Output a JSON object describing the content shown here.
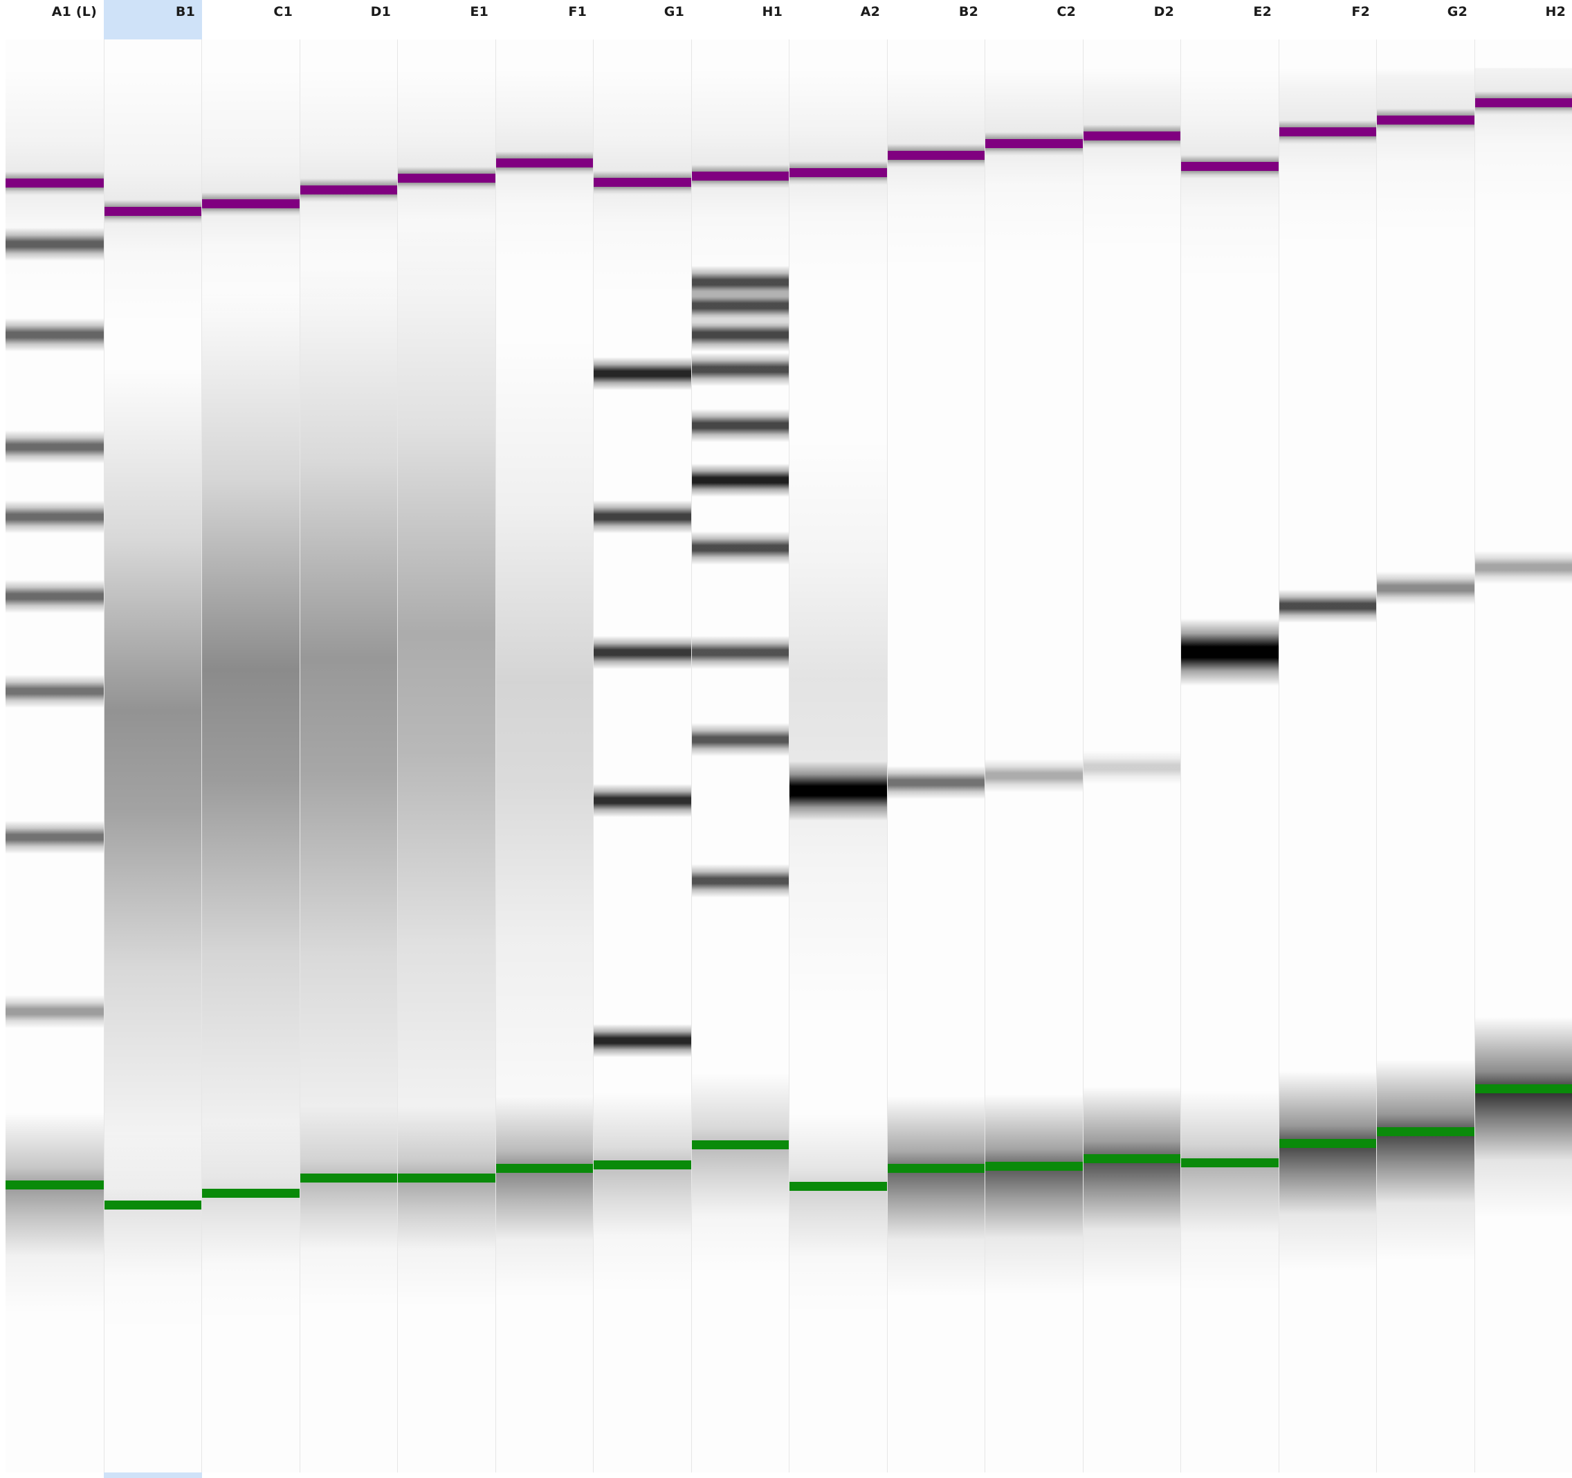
{
  "gel": {
    "lower_marker_color": "#0a8a0a",
    "upper_marker_color": "#800080",
    "band_color": "#000000",
    "selected_lane": "B1",
    "lanes": [
      {
        "label": "A1 (L)",
        "type": "ladder",
        "upper_marker": 0.1,
        "lower_marker": 0.799,
        "bands": [
          {
            "y": 0.1427,
            "i": 0.62
          },
          {
            "y": 0.2062,
            "i": 0.6
          },
          {
            "y": 0.2845,
            "i": 0.58
          },
          {
            "y": 0.3331,
            "i": 0.58
          },
          {
            "y": 0.3885,
            "i": 0.58
          },
          {
            "y": 0.4547,
            "i": 0.55
          },
          {
            "y": 0.5567,
            "i": 0.55
          },
          {
            "y": 0.6785,
            "i": 0.38
          }
        ],
        "smear": null,
        "tail": 0.45
      },
      {
        "label": "B1",
        "type": "sample",
        "upper_marker": 0.1196,
        "lower_marker": 0.8132,
        "bands": [],
        "smear": {
          "c": 0.4885,
          "w": 0.1,
          "i": 0.42
        },
        "tail": 0.12
      },
      {
        "label": "C1",
        "type": "sample",
        "upper_marker": 0.1142,
        "lower_marker": 0.8051,
        "bands": [],
        "smear": {
          "c": 0.4615,
          "w": 0.11,
          "i": 0.45
        },
        "tail": 0.15
      },
      {
        "label": "D1",
        "type": "sample",
        "upper_marker": 0.1047,
        "lower_marker": 0.7943,
        "bands": [],
        "smear": {
          "c": 0.4547,
          "w": 0.115,
          "i": 0.4
        },
        "tail": 0.3
      },
      {
        "label": "E1",
        "type": "sample",
        "upper_marker": 0.0966,
        "lower_marker": 0.7943,
        "bands": [],
        "smear": {
          "c": 0.4385,
          "w": 0.12,
          "i": 0.32
        },
        "tail": 0.38
      },
      {
        "label": "F1",
        "type": "sample",
        "upper_marker": 0.0858,
        "lower_marker": 0.7876,
        "bands": [],
        "smear": {
          "c": 0.4682,
          "w": 0.1,
          "i": 0.16
        },
        "tail": 0.55
      },
      {
        "label": "G1",
        "type": "ladder",
        "upper_marker": 0.0993,
        "lower_marker": 0.7849,
        "bands": [
          {
            "y": 0.2331,
            "i": 0.85
          },
          {
            "y": 0.3331,
            "i": 0.75
          },
          {
            "y": 0.4277,
            "i": 0.78
          },
          {
            "y": 0.5311,
            "i": 0.82
          },
          {
            "y": 0.6988,
            "i": 0.85
          }
        ],
        "smear": null,
        "tail": 0.28
      },
      {
        "label": "H1",
        "type": "ladder",
        "upper_marker": 0.0953,
        "lower_marker": 0.7713,
        "bands": [
          {
            "y": 0.1697,
            "i": 0.7
          },
          {
            "y": 0.1859,
            "i": 0.7
          },
          {
            "y": 0.2062,
            "i": 0.72
          },
          {
            "y": 0.2304,
            "i": 0.7
          },
          {
            "y": 0.2696,
            "i": 0.72
          },
          {
            "y": 0.3074,
            "i": 0.88
          },
          {
            "y": 0.3547,
            "i": 0.7
          },
          {
            "y": 0.4277,
            "i": 0.68
          },
          {
            "y": 0.4885,
            "i": 0.66
          },
          {
            "y": 0.5871,
            "i": 0.68
          }
        ],
        "smear": null,
        "tail": 0.3
      },
      {
        "label": "A2",
        "type": "sample",
        "upper_marker": 0.0925,
        "lower_marker": 0.8,
        "bands": [
          {
            "y": 0.5245,
            "i": 1.0,
            "h": 0.016
          }
        ],
        "smear": {
          "c": 0.46,
          "w": 0.07,
          "i": 0.1
        },
        "tail": 0.2
      },
      {
        "label": "B2",
        "type": "sample",
        "upper_marker": 0.0804,
        "lower_marker": 0.7876,
        "bands": [
          {
            "y": 0.5188,
            "i": 0.55
          }
        ],
        "smear": null,
        "tail": 0.7
      },
      {
        "label": "C2",
        "type": "sample",
        "upper_marker": 0.0723,
        "lower_marker": 0.7862,
        "bands": [
          {
            "y": 0.5136,
            "i": 0.32
          }
        ],
        "smear": null,
        "tail": 0.75
      },
      {
        "label": "D2",
        "type": "sample",
        "upper_marker": 0.0669,
        "lower_marker": 0.7808,
        "bands": [
          {
            "y": 0.5082,
            "i": 0.18
          }
        ],
        "smear": null,
        "tail": 0.8
      },
      {
        "label": "E2",
        "type": "sample",
        "upper_marker": 0.0885,
        "lower_marker": 0.7835,
        "bands": [
          {
            "y": 0.4277,
            "i": 1.0,
            "h": 0.018
          }
        ],
        "smear": null,
        "tail": 0.35
      },
      {
        "label": "F2",
        "type": "sample",
        "upper_marker": 0.0642,
        "lower_marker": 0.77,
        "bands": [
          {
            "y": 0.3953,
            "i": 0.7
          }
        ],
        "smear": null,
        "tail": 0.85
      },
      {
        "label": "G2",
        "type": "sample",
        "upper_marker": 0.0561,
        "lower_marker": 0.7619,
        "bands": [
          {
            "y": 0.3831,
            "i": 0.45
          }
        ],
        "smear": null,
        "tail": 0.85
      },
      {
        "label": "H2",
        "type": "sample",
        "upper_marker": 0.0439,
        "lower_marker": 0.7322,
        "bands": [
          {
            "y": 0.3682,
            "i": 0.35
          }
        ],
        "smear": null,
        "tail": 0.95
      }
    ]
  }
}
